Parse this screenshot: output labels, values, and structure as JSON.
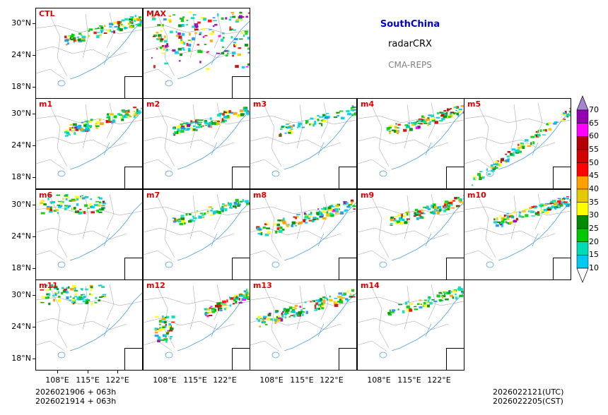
{
  "chart_data": {
    "type": "heatmap",
    "title": "SouthChina",
    "variable": "radarCRX",
    "system": "CMA-REPS",
    "panels": [
      {
        "label": "CTL",
        "intensity": 0.55,
        "focus": "north"
      },
      {
        "label": "MAX",
        "intensity": 1.0,
        "focus": "full"
      },
      {
        "label": "m1",
        "intensity": 0.6,
        "focus": "north"
      },
      {
        "label": "m2",
        "intensity": 0.65,
        "focus": "north"
      },
      {
        "label": "m3",
        "intensity": 0.35,
        "focus": "north"
      },
      {
        "label": "m4",
        "intensity": 0.6,
        "focus": "north"
      },
      {
        "label": "m5",
        "intensity": 0.55,
        "focus": "diagonal"
      },
      {
        "label": "m6",
        "intensity": 0.45,
        "focus": "northwest"
      },
      {
        "label": "m7",
        "intensity": 0.35,
        "focus": "north"
      },
      {
        "label": "m8",
        "intensity": 0.7,
        "focus": "west"
      },
      {
        "label": "m9",
        "intensity": 0.6,
        "focus": "north"
      },
      {
        "label": "m10",
        "intensity": 0.65,
        "focus": "north"
      },
      {
        "label": "m11",
        "intensity": 0.45,
        "focus": "northwest"
      },
      {
        "label": "m12",
        "intensity": 0.7,
        "focus": "southwest"
      },
      {
        "label": "m13",
        "intensity": 0.7,
        "focus": "west"
      },
      {
        "label": "m14",
        "intensity": 0.35,
        "focus": "north"
      }
    ],
    "yticks": [
      "30°N",
      "24°N",
      "18°N"
    ],
    "xticks": [
      "108°E",
      "115°E",
      "122°E"
    ],
    "colorbar": {
      "levels": [
        "10",
        "15",
        "20",
        "25",
        "30",
        "35",
        "40",
        "45",
        "50",
        "55",
        "60",
        "65",
        "70"
      ],
      "colors": [
        "#1e90e8",
        "#00c8f0",
        "#00dcb4",
        "#00c800",
        "#008c00",
        "#ffff00",
        "#e6c800",
        "#ffa000",
        "#ff0000",
        "#d20000",
        "#b40000",
        "#ff00ff",
        "#9600b4",
        "#aa82d2"
      ]
    },
    "init_time_utc": "2026021906  +  063h",
    "init_time_cst": "2026021914  +  063h",
    "valid_time_utc": "2026022121(UTC)",
    "valid_time_cst": "2026022205(CST)"
  }
}
